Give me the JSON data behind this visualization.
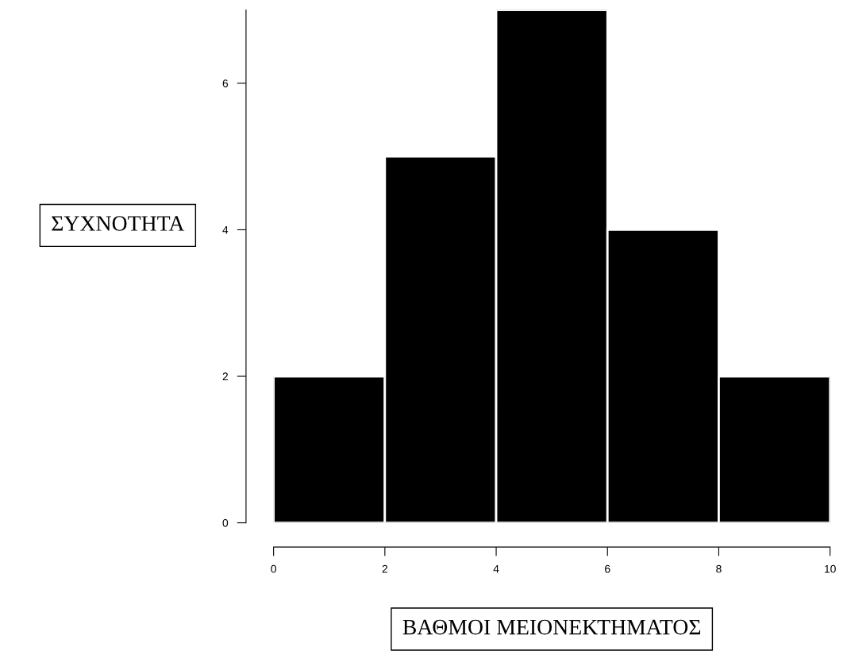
{
  "chart_data": {
    "type": "histogram",
    "xlabel": "ΒΑΘΜΟΙ ΜΕΙΟΝΕΚΤΗΜΑΤΟΣ",
    "ylabel": "ΣΥΧΝΟΤΗΤΑ",
    "bins": [
      0,
      2,
      4,
      6,
      8,
      10
    ],
    "values": [
      2,
      5,
      7,
      4,
      2
    ],
    "color": "#000000",
    "xlim": [
      0,
      10
    ],
    "xticks": [
      0,
      2,
      4,
      6,
      8,
      10
    ],
    "ylim": [
      0,
      7
    ],
    "yticks": [
      0,
      2,
      4,
      6
    ],
    "grid": false
  }
}
